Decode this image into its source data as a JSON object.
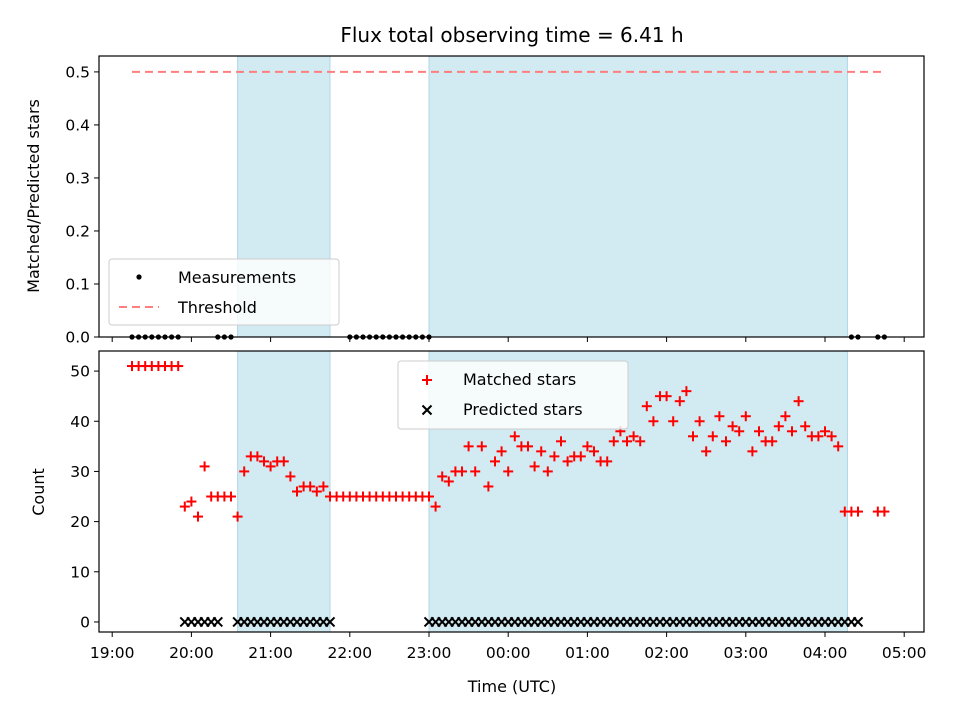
{
  "chart_data": [
    {
      "type": "scatter",
      "title": "Flux total observing time = 6.41 h",
      "xlabel": "",
      "ylabel": "Matched/Predicted stars",
      "ylim": [
        0,
        0.53
      ],
      "yticks": [
        "0.0",
        "0.1",
        "0.2",
        "0.3",
        "0.4",
        "0.5"
      ],
      "legend": {
        "placement": "lower-left",
        "entries": [
          "Measurements",
          "Threshold"
        ]
      },
      "threshold": {
        "name": "Threshold",
        "value": 0.5,
        "x_range": [
          "19:15",
          "04:45"
        ],
        "color": "#ff7f7f"
      },
      "series": [
        {
          "name": "Measurements",
          "color": "#000000",
          "x": [
            "19:15",
            "19:20",
            "19:25",
            "19:30",
            "19:35",
            "19:40",
            "19:45",
            "19:50",
            "20:20",
            "20:25",
            "20:30",
            "22:00",
            "22:05",
            "22:10",
            "22:15",
            "22:20",
            "22:25",
            "22:30",
            "22:35",
            "22:40",
            "22:45",
            "22:50",
            "22:55",
            "23:00",
            "04:20",
            "04:25",
            "04:40",
            "04:45"
          ],
          "y": [
            0,
            0,
            0,
            0,
            0,
            0,
            0,
            0,
            0,
            0,
            0,
            0,
            0,
            0,
            0,
            0,
            0,
            0,
            0,
            0,
            0,
            0,
            0,
            0,
            0,
            0,
            0,
            0
          ]
        }
      ],
      "shaded_intervals": [
        [
          "20:35",
          "21:45"
        ],
        [
          "23:00",
          "04:17"
        ]
      ]
    },
    {
      "type": "scatter",
      "title": "",
      "xlabel": "Time (UTC)",
      "ylabel": "Count",
      "ylim": [
        -2,
        54
      ],
      "yticks": [
        "0",
        "10",
        "20",
        "30",
        "40",
        "50"
      ],
      "xlim": [
        "18:50",
        "05:15"
      ],
      "xticks": [
        "19:00",
        "20:00",
        "21:00",
        "22:00",
        "23:00",
        "00:00",
        "01:00",
        "02:00",
        "03:00",
        "04:00",
        "05:00"
      ],
      "legend": {
        "placement": "upper-center",
        "entries": [
          "Matched stars",
          "Predicted stars"
        ]
      },
      "series": [
        {
          "name": "Matched stars",
          "marker": "+",
          "color": "#ff0000",
          "x": [
            "19:15",
            "19:20",
            "19:25",
            "19:30",
            "19:35",
            "19:40",
            "19:45",
            "19:50",
            "19:55",
            "20:00",
            "20:05",
            "20:10",
            "20:15",
            "20:20",
            "20:25",
            "20:30",
            "20:35",
            "20:40",
            "20:45",
            "20:50",
            "20:55",
            "21:00",
            "21:05",
            "21:10",
            "21:15",
            "21:20",
            "21:25",
            "21:30",
            "21:35",
            "21:40",
            "21:45",
            "21:50",
            "21:55",
            "22:00",
            "22:05",
            "22:10",
            "22:15",
            "22:20",
            "22:25",
            "22:30",
            "22:35",
            "22:40",
            "22:45",
            "22:50",
            "22:55",
            "23:00",
            "23:05",
            "23:10",
            "23:15",
            "23:20",
            "23:25",
            "23:30",
            "23:35",
            "23:40",
            "23:45",
            "23:50",
            "23:55",
            "00:00",
            "00:05",
            "00:10",
            "00:15",
            "00:20",
            "00:25",
            "00:30",
            "00:35",
            "00:40",
            "00:45",
            "00:50",
            "00:55",
            "01:00",
            "01:05",
            "01:10",
            "01:15",
            "01:20",
            "01:25",
            "01:30",
            "01:35",
            "01:40",
            "01:45",
            "01:50",
            "01:55",
            "02:00",
            "02:05",
            "02:10",
            "02:15",
            "02:20",
            "02:25",
            "02:30",
            "02:35",
            "02:40",
            "02:45",
            "02:50",
            "02:55",
            "03:00",
            "03:05",
            "03:10",
            "03:15",
            "03:20",
            "03:25",
            "03:30",
            "03:35",
            "03:40",
            "03:45",
            "03:50",
            "03:55",
            "04:00",
            "04:05",
            "04:10",
            "04:15",
            "04:20",
            "04:25",
            "04:40",
            "04:45"
          ],
          "y": [
            51,
            51,
            51,
            51,
            51,
            51,
            51,
            51,
            23,
            24,
            21,
            31,
            25,
            25,
            25,
            25,
            21,
            30,
            33,
            33,
            32,
            31,
            32,
            32,
            29,
            26,
            27,
            27,
            26,
            27,
            25,
            25,
            25,
            25,
            25,
            25,
            25,
            25,
            25,
            25,
            25,
            25,
            25,
            25,
            25,
            25,
            23,
            29,
            28,
            30,
            30,
            35,
            30,
            35,
            27,
            32,
            34,
            30,
            37,
            35,
            35,
            31,
            34,
            30,
            33,
            36,
            32,
            33,
            33,
            35,
            34,
            32,
            32,
            36,
            38,
            36,
            37,
            36,
            43,
            40,
            45,
            45,
            40,
            44,
            46,
            37,
            40,
            34,
            37,
            41,
            36,
            39,
            38,
            41,
            34,
            38,
            36,
            36,
            39,
            41,
            38,
            44,
            39,
            37,
            37,
            38,
            37,
            35,
            22,
            22,
            22,
            22,
            22
          ],
          "x_note": ""
        },
        {
          "name": "Predicted stars",
          "marker": "x",
          "color": "#000000",
          "x": [
            "19:55",
            "20:00",
            "20:05",
            "20:10",
            "20:15",
            "20:20",
            "20:35",
            "20:40",
            "20:45",
            "20:50",
            "20:55",
            "21:00",
            "21:05",
            "21:10",
            "21:15",
            "21:20",
            "21:25",
            "21:30",
            "21:35",
            "21:40",
            "21:45",
            "23:00",
            "23:05",
            "23:10",
            "23:15",
            "23:20",
            "23:25",
            "23:30",
            "23:35",
            "23:40",
            "23:45",
            "23:50",
            "23:55",
            "00:00",
            "00:05",
            "00:10",
            "00:15",
            "00:20",
            "00:25",
            "00:30",
            "00:35",
            "00:40",
            "00:45",
            "00:50",
            "00:55",
            "01:00",
            "01:05",
            "01:10",
            "01:15",
            "01:20",
            "01:25",
            "01:30",
            "01:35",
            "01:40",
            "01:45",
            "01:50",
            "01:55",
            "02:00",
            "02:05",
            "02:10",
            "02:15",
            "02:20",
            "02:25",
            "02:30",
            "02:35",
            "02:40",
            "02:45",
            "02:50",
            "02:55",
            "03:00",
            "03:05",
            "03:10",
            "03:15",
            "03:20",
            "03:25",
            "03:30",
            "03:35",
            "03:40",
            "03:45",
            "03:50",
            "03:55",
            "04:00",
            "04:05",
            "04:10",
            "04:15",
            "04:20",
            "04:25"
          ],
          "y": [
            0,
            0,
            0,
            0,
            0,
            0,
            0,
            0,
            0,
            0,
            0,
            0,
            0,
            0,
            0,
            0,
            0,
            0,
            0,
            0,
            0,
            0,
            0,
            0,
            0,
            0,
            0,
            0,
            0,
            0,
            0,
            0,
            0,
            0,
            0,
            0,
            0,
            0,
            0,
            0,
            0,
            0,
            0,
            0,
            0,
            0,
            0,
            0,
            0,
            0,
            0,
            0,
            0,
            0,
            0,
            0,
            0,
            0,
            0,
            0,
            0,
            0,
            0,
            0,
            0,
            0,
            0,
            0,
            0,
            0,
            0,
            0,
            0,
            0,
            0,
            0,
            0,
            0,
            0,
            0,
            0,
            0,
            0,
            0,
            0,
            0,
            0
          ]
        }
      ],
      "shaded_intervals": [
        [
          "20:35",
          "21:45"
        ],
        [
          "23:00",
          "04:17"
        ]
      ]
    }
  ],
  "colors": {
    "shade": "#add8e6",
    "matched": "#ff0000",
    "predicted": "#000000",
    "threshold": "#ff7f7f"
  }
}
